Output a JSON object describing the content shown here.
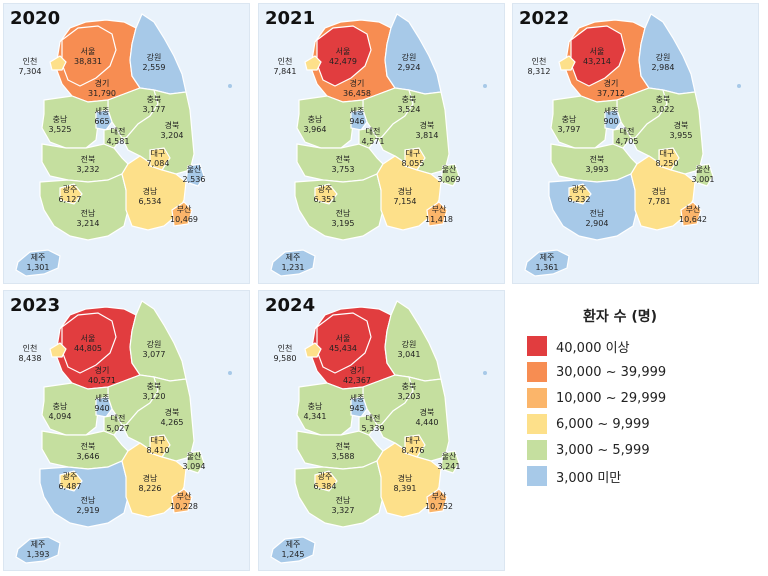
{
  "colors": {
    "c1": "#e13d3f",
    "c2": "#f78d52",
    "c3": "#fbb56a",
    "c4": "#fde08a",
    "c5": "#c5df9f",
    "c6": "#a7c9e8",
    "sea": "#e9f2fb"
  },
  "legend": {
    "title": "환자 수 (명)",
    "items": [
      {
        "label": "40,000 이상",
        "color": "#e13d3f"
      },
      {
        "label": "30,000 ~ 39,999",
        "color": "#f78d52"
      },
      {
        "label": "10,000 ~ 29,999",
        "color": "#fbb56a"
      },
      {
        "label": "6,000 ~ 9,999",
        "color": "#fde08a"
      },
      {
        "label": "3,000 ~ 5,999",
        "color": "#c5df9f"
      },
      {
        "label": "3,000 미만",
        "color": "#a7c9e8"
      }
    ]
  },
  "region_names": {
    "seoul": "서울",
    "incheon": "인천",
    "gyeonggi": "경기",
    "gangwon": "강원",
    "chungbuk": "충북",
    "chungnam": "충남",
    "sejong": "세종",
    "daejeon": "대전",
    "gyeongbuk": "경북",
    "jeonbuk": "전북",
    "daegu": "대구",
    "ulsan": "울산",
    "gwangju": "광주",
    "gyeongnam": "경남",
    "jeonnam": "전남",
    "busan": "부산",
    "jeju": "제주"
  },
  "panels": [
    {
      "year": "2020",
      "values": {
        "seoul": "38,831",
        "incheon": "7,304",
        "gyeonggi": "31,790",
        "gangwon": "2,559",
        "chungbuk": "3,177",
        "chungnam": "3,525",
        "sejong": "665",
        "daejeon": "4,581",
        "gyeongbuk": "3,204",
        "jeonbuk": "3,232",
        "daegu": "7,084",
        "ulsan": "2,536",
        "gwangju": "6,127",
        "gyeongnam": "6,534",
        "jeonnam": "3,214",
        "busan": "10,469",
        "jeju": "1,301"
      }
    },
    {
      "year": "2021",
      "values": {
        "seoul": "42,479",
        "incheon": "7,841",
        "gyeonggi": "36,458",
        "gangwon": "2,924",
        "chungbuk": "3,524",
        "chungnam": "3,964",
        "sejong": "946",
        "daejeon": "4,571",
        "gyeongbuk": "3,814",
        "jeonbuk": "3,753",
        "daegu": "8,055",
        "ulsan": "3,069",
        "gwangju": "6,351",
        "gyeongnam": "7,154",
        "jeonnam": "3,195",
        "busan": "11,418",
        "jeju": "1,231"
      }
    },
    {
      "year": "2022",
      "values": {
        "seoul": "43,214",
        "incheon": "8,312",
        "gyeonggi": "37,712",
        "gangwon": "2,984",
        "chungbuk": "3,022",
        "chungnam": "3,797",
        "sejong": "900",
        "daejeon": "4,705",
        "gyeongbuk": "3,955",
        "jeonbuk": "3,993",
        "daegu": "8,250",
        "ulsan": "3,001",
        "gwangju": "6,232",
        "gyeongnam": "7,781",
        "jeonnam": "2,904",
        "busan": "10,642",
        "jeju": "1,361"
      }
    },
    {
      "year": "2023",
      "values": {
        "seoul": "44,805",
        "incheon": "8,438",
        "gyeonggi": "40,571",
        "gangwon": "3,077",
        "chungbuk": "3,120",
        "chungnam": "4,094",
        "sejong": "940",
        "daejeon": "5,027",
        "gyeongbuk": "4,265",
        "jeonbuk": "3,646",
        "daegu": "8,410",
        "ulsan": "3,094",
        "gwangju": "6,487",
        "gyeongnam": "8,226",
        "jeonnam": "2,919",
        "busan": "10,228",
        "jeju": "1,393"
      }
    },
    {
      "year": "2024",
      "values": {
        "seoul": "45,434",
        "incheon": "9,580",
        "gyeonggi": "42,367",
        "gangwon": "3,041",
        "chungbuk": "3,203",
        "chungnam": "4,341",
        "sejong": "945",
        "daejeon": "5,339",
        "gyeongbuk": "4,440",
        "jeonbuk": "3,588",
        "daegu": "8,476",
        "ulsan": "3,241",
        "gwangju": "6,384",
        "gyeongnam": "8,391",
        "jeonnam": "3,327",
        "busan": "10,752",
        "jeju": "1,245"
      }
    }
  ]
}
